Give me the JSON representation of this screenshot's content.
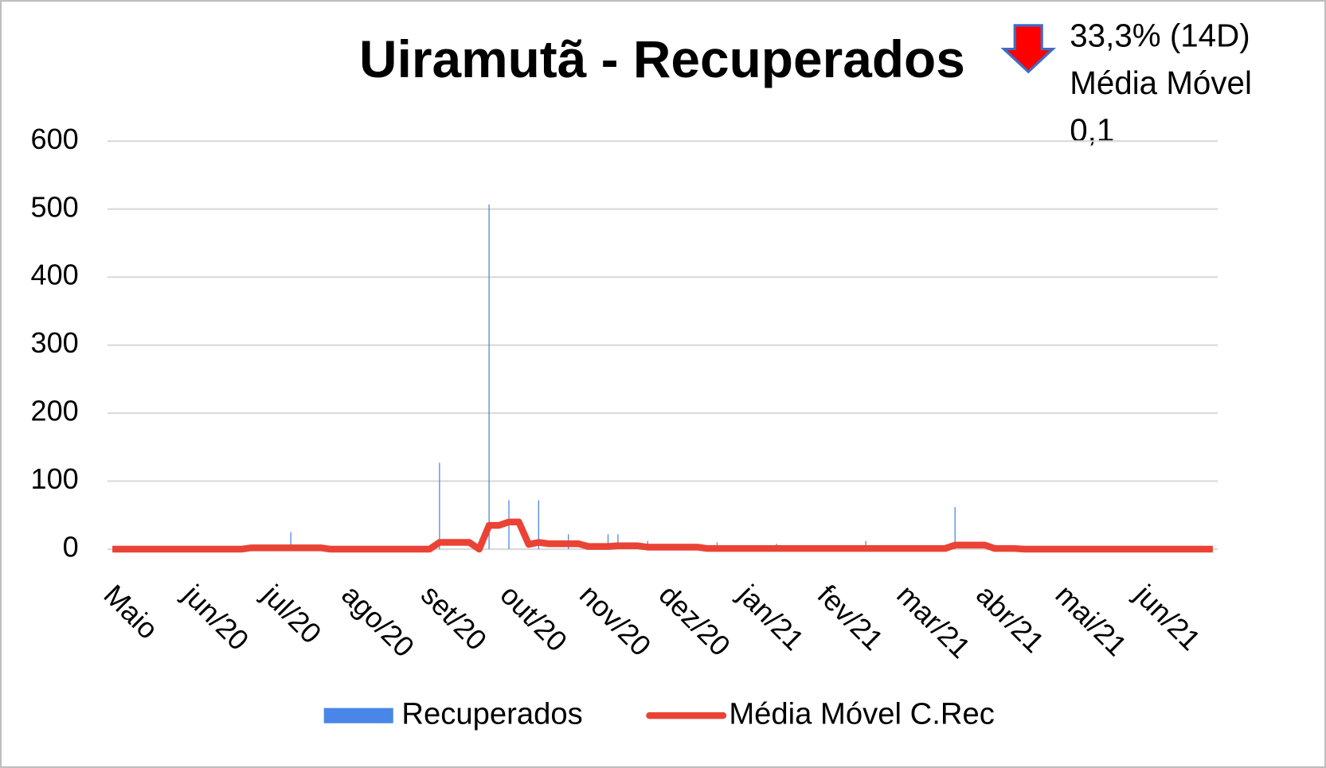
{
  "chart_data": {
    "type": "bar",
    "title": "Uiramutã - Recuperados",
    "annotations": [
      "33,3% (14D)",
      "Média Móvel",
      "0,1"
    ],
    "categories": [
      "Maio",
      null,
      null,
      null,
      null,
      null,
      null,
      null,
      "jun/20",
      null,
      null,
      null,
      null,
      null,
      null,
      null,
      "jul/20",
      null,
      null,
      null,
      null,
      null,
      null,
      null,
      "ago/20",
      null,
      null,
      null,
      null,
      null,
      null,
      null,
      "set/20",
      null,
      null,
      null,
      null,
      null,
      null,
      null,
      "out/20",
      null,
      null,
      null,
      null,
      null,
      null,
      null,
      "nov/20",
      null,
      null,
      null,
      null,
      null,
      null,
      null,
      "dez/20",
      null,
      null,
      null,
      null,
      null,
      null,
      null,
      "jan/21",
      null,
      null,
      null,
      null,
      null,
      null,
      null,
      "fev/21",
      null,
      null,
      null,
      null,
      null,
      null,
      null,
      "mar/21",
      null,
      null,
      null,
      null,
      null,
      null,
      null,
      "abr/21",
      null,
      null,
      null,
      null,
      null,
      null,
      null,
      "mai/21",
      null,
      null,
      null,
      null,
      null,
      null,
      null,
      "jun/21",
      null,
      null,
      null,
      null,
      null,
      null,
      null
    ],
    "series": [
      {
        "name": "Recuperados",
        "type": "bar",
        "color": "#4a86e8",
        "values": [
          0,
          0,
          0,
          0,
          0,
          0,
          0,
          0,
          0,
          0,
          0,
          0,
          0,
          0,
          0,
          0,
          0,
          0,
          25,
          0,
          0,
          0,
          0,
          0,
          0,
          0,
          0,
          0,
          0,
          0,
          0,
          0,
          0,
          127,
          0,
          0,
          0,
          0,
          507,
          0,
          72,
          0,
          0,
          72,
          0,
          0,
          22,
          0,
          0,
          0,
          22,
          22,
          0,
          0,
          12,
          0,
          0,
          0,
          0,
          0,
          0,
          10,
          0,
          0,
          0,
          0,
          0,
          8,
          0,
          0,
          0,
          0,
          0,
          0,
          0,
          0,
          12,
          0,
          0,
          0,
          0,
          0,
          0,
          0,
          0,
          62,
          0,
          0,
          0,
          0,
          0,
          0,
          0,
          0,
          0,
          0,
          0,
          0,
          0,
          0,
          0,
          0,
          0,
          0,
          0,
          0,
          0,
          0,
          0,
          0,
          0,
          0
        ]
      },
      {
        "name": "Média Móvel C.Rec",
        "type": "line",
        "color": "#ea4335",
        "values": [
          0,
          0,
          0,
          0,
          0,
          0,
          0,
          0,
          0,
          0,
          0,
          0,
          0,
          0,
          2,
          2,
          2,
          2,
          2,
          2,
          2,
          2,
          0,
          0,
          0,
          0,
          0,
          0,
          0,
          0,
          0,
          0,
          0,
          10,
          10,
          10,
          10,
          0,
          35,
          35,
          40,
          40,
          7,
          10,
          8,
          8,
          8,
          8,
          4,
          4,
          4,
          5,
          5,
          5,
          3,
          3,
          3,
          3,
          3,
          3,
          1,
          1,
          1,
          1,
          1,
          1,
          1,
          1,
          1,
          1,
          1,
          1,
          1,
          1,
          1,
          1,
          1,
          1,
          1,
          1,
          1,
          1,
          1,
          1,
          1,
          6,
          6,
          6,
          6,
          1,
          1,
          1,
          0,
          0,
          0,
          0,
          0,
          0,
          0,
          0,
          0,
          0,
          0,
          0,
          0,
          0,
          0,
          0,
          0,
          0,
          0,
          0
        ]
      }
    ],
    "ylim": [
      0,
      600
    ],
    "yticks": [
      0,
      100,
      200,
      300,
      400,
      500,
      600
    ],
    "grid": true,
    "legend": "bottom"
  }
}
